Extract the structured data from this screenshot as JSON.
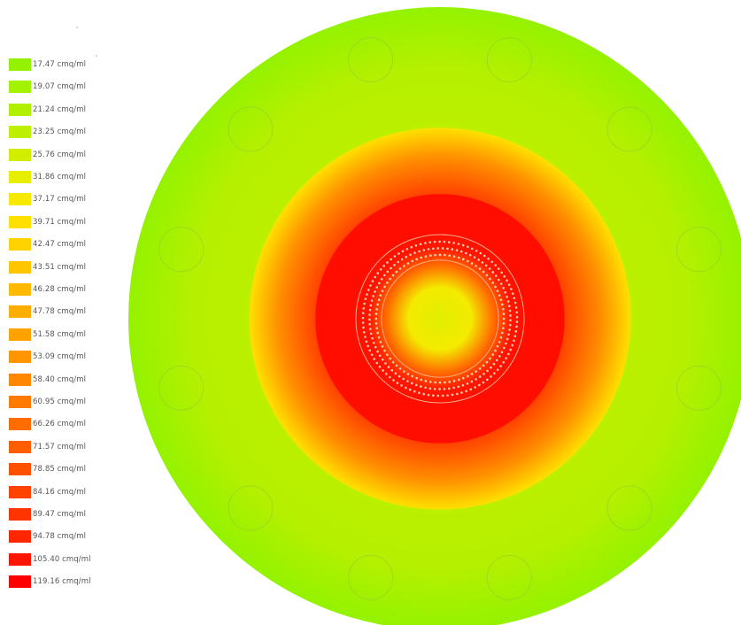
{
  "chart_data": {
    "type": "heatmap",
    "title": "",
    "unit": "cmq/ml",
    "legend_position": "left",
    "legend": [
      {
        "label": "17.47 cmq/ml",
        "value": 17.47,
        "color": "#94f200"
      },
      {
        "label": "19.07 cmq/ml",
        "value": 19.07,
        "color": "#a3f200"
      },
      {
        "label": "21.24 cmq/ml",
        "value": 21.24,
        "color": "#b0f000"
      },
      {
        "label": "23.25 cmq/ml",
        "value": 23.25,
        "color": "#bdf000"
      },
      {
        "label": "25.76 cmq/ml",
        "value": 25.76,
        "color": "#d2ee00"
      },
      {
        "label": "31.86 cmq/ml",
        "value": 31.86,
        "color": "#e8ee00"
      },
      {
        "label": "37.17 cmq/ml",
        "value": 37.17,
        "color": "#f7ea00"
      },
      {
        "label": "39.71 cmq/ml",
        "value": 39.71,
        "color": "#ffe000"
      },
      {
        "label": "42.47 cmq/ml",
        "value": 42.47,
        "color": "#ffd200"
      },
      {
        "label": "43.51 cmq/ml",
        "value": 43.51,
        "color": "#ffc600"
      },
      {
        "label": "46.28 cmq/ml",
        "value": 46.28,
        "color": "#ffba00"
      },
      {
        "label": "47.78 cmq/ml",
        "value": 47.78,
        "color": "#ffae00"
      },
      {
        "label": "51.58 cmq/ml",
        "value": 51.58,
        "color": "#ffa200"
      },
      {
        "label": "53.09 cmq/ml",
        "value": 53.09,
        "color": "#ff9500"
      },
      {
        "label": "58.40 cmq/ml",
        "value": 58.4,
        "color": "#ff8800"
      },
      {
        "label": "60.95 cmq/ml",
        "value": 60.95,
        "color": "#ff7a00"
      },
      {
        "label": "66.26 cmq/ml",
        "value": 66.26,
        "color": "#ff6c00"
      },
      {
        "label": "71.57 cmq/ml",
        "value": 71.57,
        "color": "#ff5e00"
      },
      {
        "label": "78.85 cmq/ml",
        "value": 78.85,
        "color": "#ff5000"
      },
      {
        "label": "84.16 cmq/ml",
        "value": 84.16,
        "color": "#ff4200"
      },
      {
        "label": "89.47 cmq/ml",
        "value": 89.47,
        "color": "#ff3400"
      },
      {
        "label": "94.78 cmq/ml",
        "value": 94.78,
        "color": "#ff2600"
      },
      {
        "label": "105.40 cmq/ml",
        "value": 105.4,
        "color": "#ff1500"
      },
      {
        "label": "119.16 cmq/ml",
        "value": 119.16,
        "color": "#ff0000"
      }
    ],
    "radial_profile_fraction_of_outer_radius": [
      {
        "r": 0.0,
        "value": 30
      },
      {
        "r": 0.1,
        "value": 36
      },
      {
        "r": 0.17,
        "value": 65
      },
      {
        "r": 0.23,
        "value": 105
      },
      {
        "r": 0.28,
        "value": 110
      },
      {
        "r": 0.4,
        "value": 84
      },
      {
        "r": 0.52,
        "value": 55
      },
      {
        "r": 0.61,
        "value": 40
      },
      {
        "r": 0.615,
        "value": 23
      },
      {
        "r": 0.8,
        "value": 22
      },
      {
        "r": 1.0,
        "value": 17.5
      }
    ],
    "outer_hole_count": 12,
    "inner_ring_rows": 3
  }
}
